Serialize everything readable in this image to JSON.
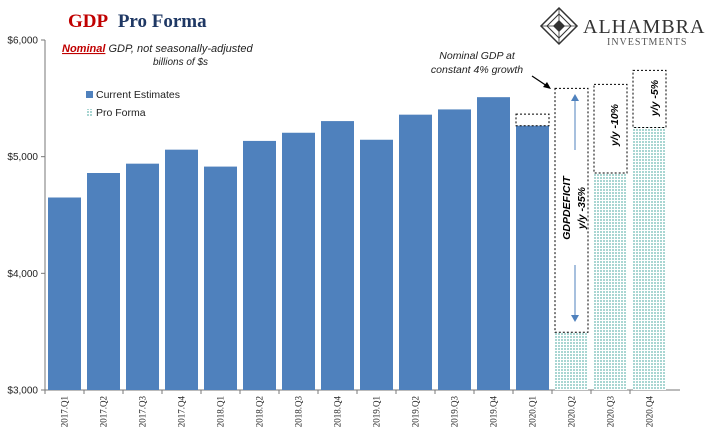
{
  "title": {
    "part1": "GDP",
    "part2": "Pro Forma"
  },
  "subtitle": {
    "emphasis": "Nominal",
    "rest": " GDP, not seasonally-adjusted",
    "line2": "billions of $s"
  },
  "logo": {
    "name": "ALHAMBRA",
    "tagline": "INVESTMENTS"
  },
  "annotations": {
    "nominal_note_line1": "Nominal GDP at",
    "nominal_note_line2": "constant 4% growth",
    "gap_label": "GDPDEFICIT",
    "gap_yy": "y/y -35%",
    "q3_yy": "y/y -10%",
    "q4_yy": "y/y -5%"
  },
  "colors": {
    "current_bar": "#4f81bd",
    "pro_forma_fill": "#a9d6d2",
    "title_red": "#c00000",
    "title_navy": "#1f3864"
  },
  "chart_data": {
    "type": "bar",
    "categories": [
      "2017.Q1",
      "2017.Q2",
      "2017.Q3",
      "2017.Q4",
      "2018.Q1",
      "2018.Q2",
      "2018.Q3",
      "2018.Q4",
      "2019.Q1",
      "2019.Q2",
      "2019.Q3",
      "2019.Q4",
      "2020.Q1",
      "2020.Q2",
      "2020.Q3",
      "2020.Q4"
    ],
    "series": [
      {
        "name": "Current Estimates",
        "values": [
          4650,
          4860,
          4940,
          5060,
          4915,
          5135,
          5205,
          5305,
          5145,
          5360,
          5405,
          5510,
          5265,
          null,
          null,
          null
        ]
      },
      {
        "name": "Pro Forma",
        "values": [
          null,
          null,
          null,
          null,
          null,
          null,
          null,
          null,
          null,
          null,
          null,
          null,
          null,
          3495,
          4860,
          5250
        ]
      }
    ],
    "constant_growth_values": [
      null,
      null,
      null,
      null,
      null,
      null,
      null,
      null,
      null,
      null,
      null,
      null,
      5365,
      5585,
      5620,
      5740
    ],
    "ylim": [
      3000,
      6000
    ],
    "yticks": [
      "$3,000",
      "$4,000",
      "$5,000",
      "$6,000"
    ],
    "legend_position": "top-left",
    "grid": false
  }
}
